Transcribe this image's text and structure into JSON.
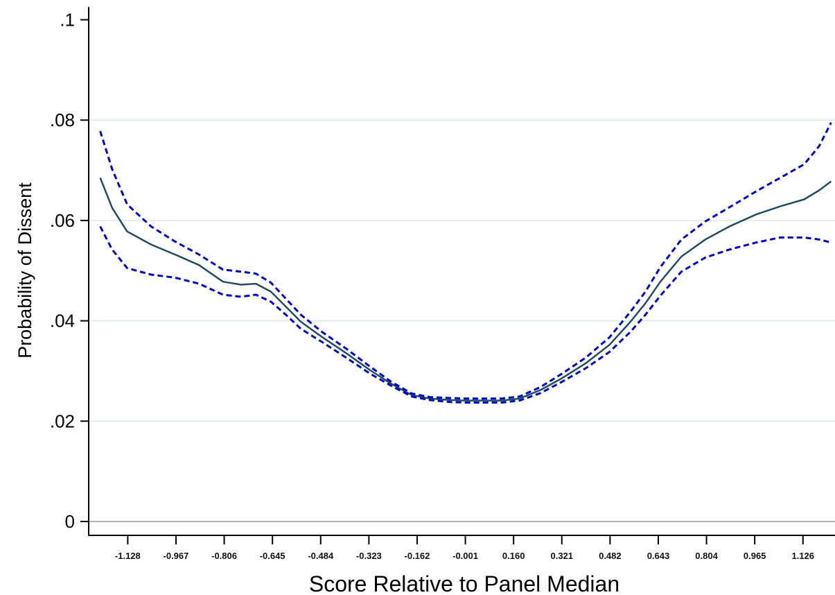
{
  "chart_data": {
    "type": "line",
    "title": "",
    "xlabel": "Score Relative to Panel Median",
    "ylabel": "Probability of Dissent",
    "xlim": [
      -1.24,
      1.24
    ],
    "ylim": [
      -0.0025,
      0.1
    ],
    "y_ticks": [
      0,
      0.02,
      0.04,
      0.06,
      0.08,
      0.1
    ],
    "y_tick_labels": [
      "0",
      ".02",
      ".04",
      ".06",
      ".08",
      ".1"
    ],
    "x_ticks": [
      -1.128,
      -0.967,
      -0.806,
      -0.645,
      -0.484,
      -0.323,
      -0.162,
      -0.001,
      0.16,
      0.321,
      0.482,
      0.643,
      0.804,
      0.965,
      1.126
    ],
    "x_tick_labels": [
      "-1.128",
      "-0.967",
      "-0.806",
      "-0.645",
      "-0.484",
      "-0.323",
      "-0.162",
      "-0.001",
      "0.160",
      "0.321",
      "0.482",
      "0.643",
      "0.804",
      "0.965",
      "1.126"
    ],
    "grid": "horizontal",
    "legend": "none",
    "x": [
      -1.22,
      -1.18,
      -1.13,
      -1.05,
      -0.97,
      -0.89,
      -0.81,
      -0.75,
      -0.7,
      -0.65,
      -0.6,
      -0.55,
      -0.48,
      -0.4,
      -0.32,
      -0.25,
      -0.18,
      -0.12,
      -0.05,
      0.0,
      0.05,
      0.12,
      0.18,
      0.25,
      0.32,
      0.4,
      0.48,
      0.55,
      0.6,
      0.65,
      0.72,
      0.8,
      0.88,
      0.97,
      1.05,
      1.13,
      1.18,
      1.22
    ],
    "series": [
      {
        "values": [
          0.0685,
          0.0625,
          0.0578,
          0.0552,
          0.0532,
          0.0511,
          0.0478,
          0.0472,
          0.0474,
          0.0458,
          0.0428,
          0.0398,
          0.0368,
          0.0336,
          0.0302,
          0.0275,
          0.0252,
          0.0245,
          0.0242,
          0.0241,
          0.0241,
          0.0241,
          0.0245,
          0.0262,
          0.0285,
          0.0315,
          0.0352,
          0.0398,
          0.0435,
          0.0478,
          0.0528,
          0.0562,
          0.0588,
          0.0612,
          0.0628,
          0.0642,
          0.066,
          0.0678
        ],
        "color": "#1f4e5f",
        "style": "solid"
      },
      {
        "values": [
          0.0778,
          0.0702,
          0.0632,
          0.0588,
          0.0558,
          0.0532,
          0.0502,
          0.0498,
          0.0494,
          0.0476,
          0.0444,
          0.0412,
          0.0378,
          0.0345,
          0.0309,
          0.0279,
          0.0255,
          0.0248,
          0.0246,
          0.0245,
          0.0245,
          0.0245,
          0.0249,
          0.0268,
          0.0294,
          0.0326,
          0.0367,
          0.0418,
          0.0458,
          0.0507,
          0.0562,
          0.0598,
          0.0626,
          0.0658,
          0.0685,
          0.0712,
          0.0748,
          0.0795
        ],
        "color": "#0000cc",
        "style": "dashed"
      },
      {
        "values": [
          0.0588,
          0.0542,
          0.0505,
          0.0492,
          0.0486,
          0.0474,
          0.0452,
          0.0448,
          0.0452,
          0.0438,
          0.0412,
          0.0384,
          0.0358,
          0.0327,
          0.0295,
          0.0271,
          0.0249,
          0.0242,
          0.0238,
          0.0237,
          0.0237,
          0.0237,
          0.0241,
          0.0256,
          0.0278,
          0.0305,
          0.0338,
          0.0378,
          0.0412,
          0.045,
          0.0498,
          0.0526,
          0.0542,
          0.0556,
          0.0566,
          0.0566,
          0.0562,
          0.0556
        ],
        "color": "#0000cc",
        "style": "dashed"
      }
    ]
  }
}
